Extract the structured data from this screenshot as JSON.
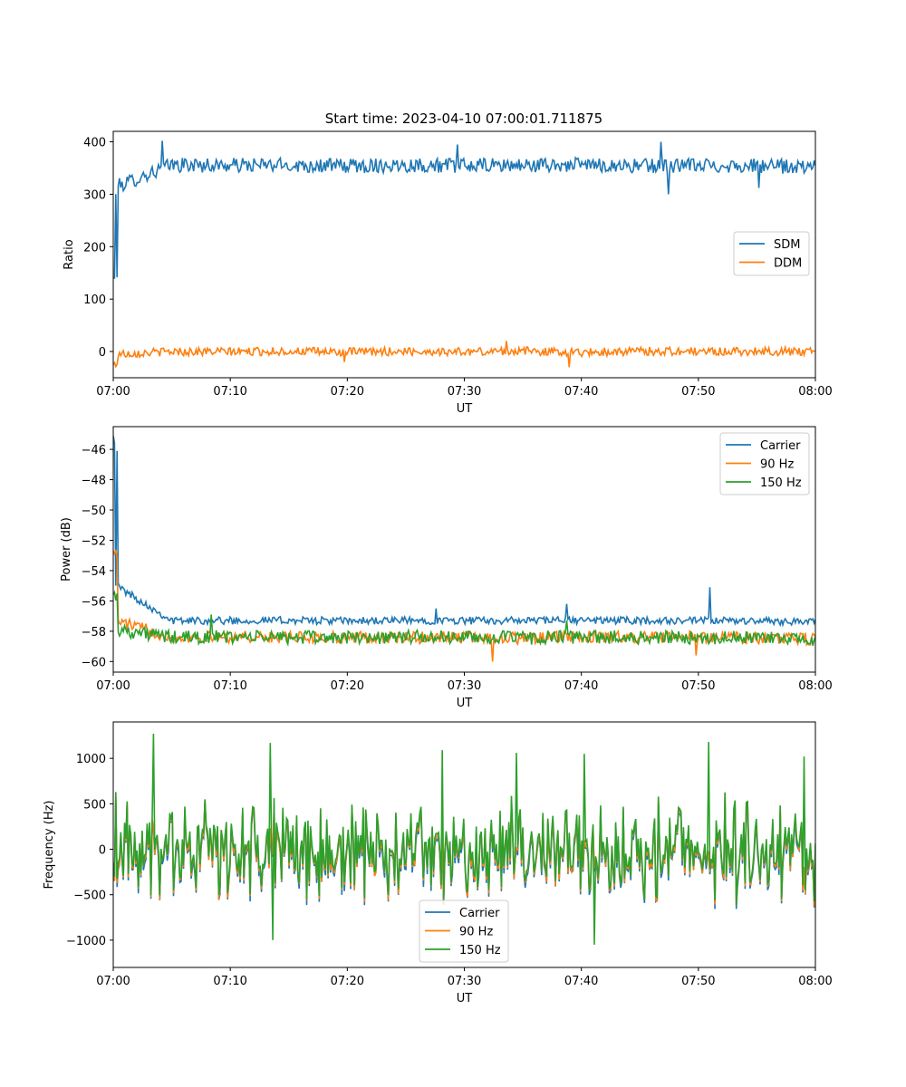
{
  "figure": {
    "title": "Start time: 2023-04-10 07:00:01.711875"
  },
  "chart_data": [
    {
      "type": "line",
      "title": "Start time: 2023-04-10 07:00:01.711875",
      "xlabel": "UT",
      "ylabel": "Ratio",
      "xlim": [
        "07:00",
        "08:00"
      ],
      "ylim": [
        -50,
        420
      ],
      "xticks": [
        "07:00",
        "07:10",
        "07:20",
        "07:30",
        "07:40",
        "07:50",
        "08:00"
      ],
      "yticks": [
        "0",
        "100",
        "200",
        "300",
        "400"
      ],
      "grid": false,
      "legend_position": "center-right",
      "x": [
        "07:00",
        "07:05",
        "07:10",
        "07:15",
        "07:20",
        "07:25",
        "07:30",
        "07:35",
        "07:40",
        "07:45",
        "07:50",
        "07:55",
        "08:00"
      ],
      "series": [
        {
          "name": "SDM",
          "color": "#1f77b4",
          "values": [
            140,
            360,
            355,
            358,
            350,
            360,
            352,
            355,
            360,
            350,
            355,
            352,
            335
          ],
          "base": 355,
          "noise": 14,
          "spikes": [
            [
              0.0,
              140
            ],
            [
              0.004,
              300
            ],
            [
              0.07,
              402
            ],
            [
              0.49,
              395
            ],
            [
              0.78,
              400
            ],
            [
              0.79,
              300
            ],
            [
              0.92,
              312
            ]
          ]
        },
        {
          "name": "DDM",
          "color": "#ff7f0e",
          "values": [
            -25,
            0,
            -2,
            3,
            -5,
            2,
            -3,
            5,
            -8,
            4,
            0,
            3,
            0
          ],
          "base": 0,
          "noise": 8,
          "spikes": [
            [
              0.0,
              -25
            ],
            [
              0.33,
              -20
            ],
            [
              0.56,
              20
            ],
            [
              0.65,
              -30
            ]
          ]
        }
      ]
    },
    {
      "type": "line",
      "xlabel": "UT",
      "ylabel": "Power (dB)",
      "xlim": [
        "07:00",
        "08:00"
      ],
      "ylim": [
        -60.7,
        -44.5
      ],
      "xticks": [
        "07:00",
        "07:10",
        "07:20",
        "07:30",
        "07:40",
        "07:50",
        "08:00"
      ],
      "yticks": [
        "−60",
        "−58",
        "−56",
        "−54",
        "−52",
        "−50",
        "−48",
        "−46"
      ],
      "grid": false,
      "legend_position": "top-right",
      "x": [
        "07:00",
        "07:05",
        "07:10",
        "07:15",
        "07:20",
        "07:25",
        "07:30",
        "07:35",
        "07:40",
        "07:45",
        "07:50",
        "07:55",
        "08:00"
      ],
      "series": [
        {
          "name": "Carrier",
          "color": "#1f77b4",
          "values": [
            -45.1,
            -57.3,
            -57.3,
            -57.2,
            -57.4,
            -57.3,
            -57.3,
            -57.3,
            -57.2,
            -57.3,
            -57.4,
            -57.4,
            -57.6
          ],
          "base": -57.3,
          "noise": 0.25,
          "spikes": [
            [
              0.0,
              -45.1
            ],
            [
              0.004,
              -55
            ],
            [
              0.46,
              -56.5
            ],
            [
              0.645,
              -56.2
            ],
            [
              0.85,
              -55.1
            ]
          ]
        },
        {
          "name": "90 Hz",
          "color": "#ff7f0e",
          "values": [
            -52.7,
            -58.4,
            -58.3,
            -58.5,
            -58.4,
            -58.6,
            -58.4,
            -58.8,
            -58.2,
            -58.5,
            -58.3,
            -58.6,
            -59.0
          ],
          "base": -58.4,
          "noise": 0.4,
          "spikes": [
            [
              0.0,
              -52.7
            ],
            [
              0.54,
              -60.0
            ],
            [
              0.83,
              -59.6
            ]
          ]
        },
        {
          "name": "150 Hz",
          "color": "#2ca02c",
          "values": [
            -55.6,
            -58.5,
            -58.3,
            -58.4,
            -58.5,
            -58.3,
            -58.4,
            -58.6,
            -58.3,
            -58.5,
            -58.4,
            -58.6,
            -59.1
          ],
          "base": -58.4,
          "noise": 0.45,
          "spikes": [
            [
              0.0,
              -55.6
            ],
            [
              0.14,
              -56.9
            ],
            [
              0.645,
              -57.3
            ]
          ]
        }
      ]
    },
    {
      "type": "line",
      "xlabel": "UT",
      "ylabel": "Frequency (Hz)",
      "xlim": [
        "07:00",
        "08:00"
      ],
      "ylim": [
        -1300,
        1400
      ],
      "xticks": [
        "07:00",
        "07:10",
        "07:20",
        "07:30",
        "07:40",
        "07:50",
        "08:00"
      ],
      "yticks": [
        "−1000",
        "−500",
        "0",
        "500",
        "1000"
      ],
      "grid": false,
      "legend_position": "bottom-center",
      "x": [
        "07:00",
        "07:05",
        "07:10",
        "07:15",
        "07:20",
        "07:25",
        "07:30",
        "07:35",
        "07:40",
        "07:45",
        "07:50",
        "07:55",
        "08:00"
      ],
      "series": [
        {
          "name": "Carrier",
          "color": "#1f77b4",
          "values": [
            -300,
            200,
            -500,
            400,
            -200,
            300,
            -100,
            250,
            -1150,
            300,
            -400,
            100,
            -400
          ],
          "base": -60,
          "noise": 420
        },
        {
          "name": "90 Hz",
          "color": "#ff7f0e",
          "values": [
            -250,
            240,
            -450,
            440,
            -160,
            330,
            -60,
            290,
            -1100,
            340,
            -360,
            140,
            -360
          ],
          "base": -30,
          "noise": 420
        },
        {
          "name": "150 Hz",
          "color": "#2ca02c",
          "values": [
            -200,
            280,
            -400,
            480,
            -120,
            370,
            -20,
            330,
            -1050,
            380,
            -320,
            180,
            -320
          ],
          "base": 0,
          "noise": 420,
          "spikes": [
            [
              0.058,
              1270
            ],
            [
              0.224,
              1170
            ],
            [
              0.468,
              1090
            ],
            [
              0.574,
              1060
            ],
            [
              0.671,
              1050
            ],
            [
              0.848,
              1180
            ],
            [
              0.984,
              1020
            ],
            [
              0.227,
              -1000
            ],
            [
              0.685,
              -1050
            ]
          ]
        }
      ]
    }
  ]
}
